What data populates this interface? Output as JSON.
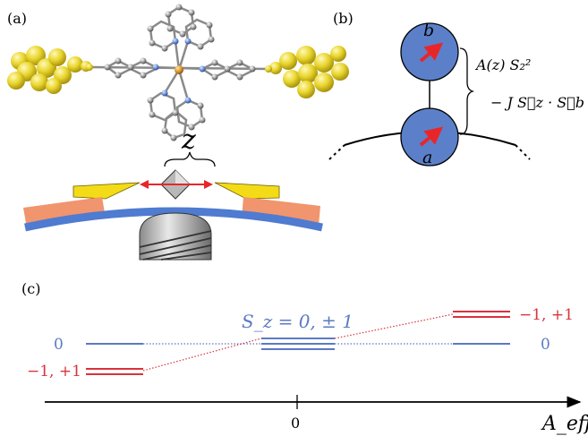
{
  "panels": {
    "a_label": "(a)",
    "b_label": "(b)",
    "c_label": "(c)"
  },
  "panel_a": {
    "z_label": "z"
  },
  "panel_b": {
    "spin_top": "b",
    "spin_bottom": "a",
    "hamiltonian_line1": "A(z) S₂²",
    "hamiltonian_line2": "− J S⃗z · S⃗b"
  },
  "panel_c": {
    "center_label": "S_z = 0, ± 1",
    "left_zero": "0",
    "left_pair": "−1, +1",
    "right_pair": "−1, +1",
    "right_zero": "0",
    "axis_tick": "0",
    "axis_label": "A_eff"
  },
  "colors": {
    "blue": "#5b79c4",
    "red": "#d8333d",
    "gold": "#e8d42a",
    "salmon": "#f0956e",
    "spin_fill": "#5b80c9"
  }
}
